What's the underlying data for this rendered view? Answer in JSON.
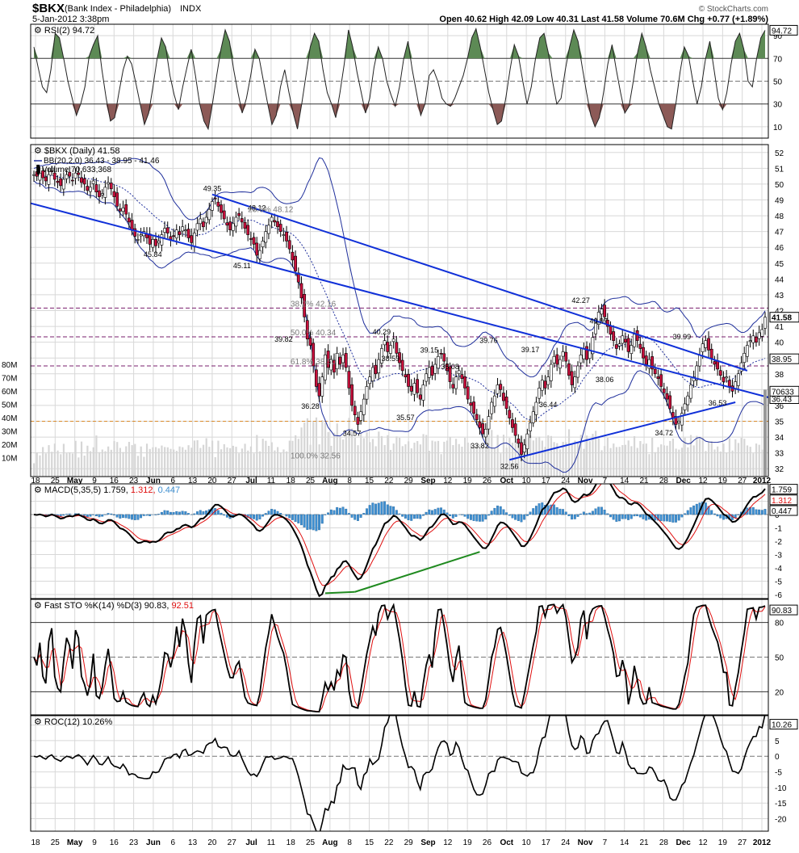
{
  "header": {
    "symbol": "$BKX",
    "name": "(Bank Index - Philadelphia)",
    "exchange": "INDX",
    "date": "5-Jan-2012 3:38pm",
    "quote": "Open 40.62  High 42.09  Low 40.31  Last 41.58  Volume 70.6M  Chg +0.77 (+1.89%)",
    "watermark": "© StockCharts.com"
  },
  "colors": {
    "up": "#ffffff",
    "down": "#c8103c",
    "bb": "#1f2f9c",
    "trend": "#1030d8",
    "fib": "#7a1f6e",
    "fib_last": "#d88a2a",
    "rsi_high": "#5d8a55",
    "rsi_low": "#8c5a57",
    "macd_signal": "#e01010",
    "macd_hist": "#3d8ed0",
    "divergence": "#1f8a1f",
    "grid": "#d8d8d8"
  },
  "chart_data": [
    {
      "type": "line",
      "panel": "rsi",
      "legend": "RSI(2) 94.72",
      "last_label": "94.72",
      "ylim": [
        0,
        100
      ],
      "yticks": [
        10,
        30,
        50,
        70,
        90
      ],
      "overbought": 70,
      "oversold": 30,
      "values": [
        80,
        62,
        45,
        40,
        60,
        92,
        88,
        70,
        50,
        35,
        20,
        30,
        45,
        72,
        82,
        90,
        60,
        35,
        15,
        18,
        40,
        60,
        72,
        65,
        48,
        30,
        12,
        22,
        45,
        70,
        88,
        80,
        55,
        38,
        25,
        45,
        62,
        78,
        55,
        30,
        15,
        8,
        30,
        55,
        78,
        95,
        85,
        60,
        40,
        22,
        35,
        55,
        78,
        70,
        50,
        30,
        12,
        20,
        45,
        60,
        40,
        22,
        8,
        30,
        55,
        80,
        92,
        85,
        60,
        40,
        30,
        18,
        40,
        65,
        95,
        80,
        58,
        40,
        22,
        35,
        62,
        80,
        70,
        50,
        38,
        28,
        45,
        70,
        85,
        60,
        40,
        20,
        30,
        55,
        60,
        50,
        35,
        30,
        28,
        35,
        45,
        55,
        70,
        88,
        96,
        80,
        60,
        40,
        25,
        12,
        15,
        35,
        60,
        82,
        72,
        50,
        30,
        45,
        70,
        88,
        92,
        75,
        50,
        30,
        35,
        60,
        80,
        95,
        85,
        62,
        40,
        20,
        10,
        18,
        40,
        65,
        82,
        60,
        40,
        22,
        28,
        50,
        75,
        92,
        80,
        60,
        45,
        30,
        20,
        10,
        8,
        30,
        58,
        80,
        72,
        50,
        30,
        45,
        70,
        85,
        60,
        35,
        25,
        40,
        65,
        85,
        92,
        78,
        50,
        45,
        70,
        88,
        94.72
      ]
    },
    {
      "type": "candlestick",
      "panel": "price",
      "legend": [
        "$BKX (Daily) 41.58",
        "BB(20,2.0) 36.43 - 38.95 - 41.46",
        "Volume 70,633,368"
      ],
      "x": [
        "18",
        "25",
        "May",
        "9",
        "16",
        "23",
        "Jun",
        "6",
        "13",
        "20",
        "27",
        "Jul",
        "11",
        "18",
        "25",
        "Aug",
        "8",
        "15",
        "22",
        "29",
        "Sep",
        "12",
        "19",
        "26",
        "Oct",
        "10",
        "17",
        "24",
        "Nov",
        "7",
        "14",
        "21",
        "28",
        "Dec",
        "12",
        "19",
        "27",
        "2012"
      ],
      "ylim": [
        31.5,
        52.5
      ],
      "yticks": [
        32,
        33,
        34,
        35,
        36,
        37,
        38,
        39,
        40,
        41,
        42,
        43,
        44,
        45,
        46,
        47,
        48,
        49,
        50,
        51,
        52
      ],
      "last": 41.58,
      "right_labels": [
        "41.58",
        "38.95",
        "36.43",
        "70633"
      ],
      "volume_ticks": [
        "80M",
        "70M",
        "60M",
        "50M",
        "40M",
        "30M",
        "20M",
        "10M"
      ],
      "closes": [
        50.6,
        50.5,
        50.7,
        50.4,
        50.2,
        50.6,
        50.8,
        50.3,
        50.1,
        49.9,
        50.3,
        50.6,
        50.5,
        50.2,
        50.7,
        50.6,
        50.1,
        50.0,
        49.6,
        49.8,
        50.2,
        49.5,
        49.2,
        49.4,
        49.8,
        50.1,
        49.7,
        49.2,
        48.6,
        48.3,
        48.5,
        48.1,
        47.6,
        47.1,
        46.7,
        46.5,
        46.8,
        47.0,
        46.6,
        46.2,
        46.5,
        46.1,
        46.4,
        46.8,
        47.2,
        46.9,
        46.5,
        46.7,
        47.1,
        46.8,
        47.3,
        47.1,
        46.6,
        46.3,
        46.9,
        47.5,
        47.8,
        47.3,
        47.9,
        48.4,
        48.9,
        49.1,
        48.6,
        48.2,
        47.8,
        47.4,
        47.1,
        47.5,
        47.9,
        48.0,
        47.6,
        47.2,
        46.8,
        46.5,
        46.2,
        45.5,
        45.8,
        46.4,
        47.0,
        47.4,
        47.9,
        47.6,
        47.3,
        47.0,
        46.8,
        46.4,
        45.9,
        45.2,
        44.5,
        43.8,
        42.8,
        41.6,
        40.2,
        39.8,
        38.5,
        37.2,
        36.6,
        37.8,
        39.2,
        38.4,
        38.9,
        38.1,
        39.3,
        38.6,
        39.2,
        38.4,
        37.1,
        36.0,
        35.4,
        34.8,
        35.6,
        36.4,
        37.2,
        37.8,
        38.4,
        38.0,
        38.9,
        39.6,
        40.1,
        39.4,
        39.8,
        40.2,
        39.3,
        38.7,
        38.2,
        37.8,
        37.2,
        36.9,
        37.4,
        36.8,
        36.4,
        37.3,
        38.0,
        38.4,
        37.9,
        38.6,
        39.1,
        39.3,
        38.8,
        38.2,
        37.5,
        37.1,
        37.8,
        38.2,
        37.7,
        37.1,
        36.4,
        36.0,
        35.5,
        35.1,
        34.6,
        34.2,
        34.5,
        35.3,
        36.2,
        36.6,
        37.3,
        37.0,
        36.3,
        35.8,
        35.2,
        34.6,
        34.1,
        33.6,
        32.9,
        33.5,
        34.2,
        34.9,
        35.6,
        36.2,
        37.1,
        37.6,
        37.1,
        37.8,
        38.6,
        39.1,
        38.6,
        38.9,
        39.4,
        38.8,
        37.9,
        37.3,
        37.8,
        38.5,
        39.2,
        39.6,
        38.9,
        39.5,
        40.3,
        41.2,
        41.9,
        42.1,
        41.6,
        41.0,
        40.5,
        40.1,
        39.6,
        39.9,
        40.4,
        40.0,
        39.4,
        39.8,
        40.5,
        40.1,
        39.6,
        39.0,
        38.6,
        38.9,
        38.3,
        38.0,
        37.7,
        37.2,
        36.8,
        36.4,
        35.8,
        35.2,
        34.8,
        35.0,
        35.5,
        36.1,
        36.6,
        37.3,
        37.8,
        38.5,
        39.2,
        39.9,
        40.1,
        39.5,
        39.0,
        38.6,
        38.3,
        37.9,
        37.5,
        37.8,
        37.2,
        36.9,
        37.5,
        38.0,
        38.7,
        39.3,
        39.8,
        40.1,
        40.4,
        40.0,
        40.6,
        40.8,
        41.58
      ],
      "swing_labels": [
        {
          "text": "49.35",
          "i": 60,
          "y": 49.35,
          "pos": "above"
        },
        {
          "text": "48.12",
          "i": 75,
          "y": 48.12,
          "pos": "above"
        },
        {
          "text": "45.84",
          "i": 40,
          "y": 46.0,
          "pos": "below"
        },
        {
          "text": "45.11",
          "i": 70,
          "y": 45.3,
          "pos": "below"
        },
        {
          "text": "39.82",
          "i": 84,
          "y": 39.82,
          "pos": "above"
        },
        {
          "text": "36.28",
          "i": 93,
          "y": 36.4,
          "pos": "below"
        },
        {
          "text": "34.57",
          "i": 107,
          "y": 34.7,
          "pos": "below"
        },
        {
          "text": "40.29",
          "i": 117,
          "y": 40.29,
          "pos": "above"
        },
        {
          "text": "38.59",
          "i": 120,
          "y": 38.59,
          "pos": "above"
        },
        {
          "text": "35.57",
          "i": 125,
          "y": 35.7,
          "pos": "below"
        },
        {
          "text": "39.15",
          "i": 133,
          "y": 39.15,
          "pos": "above"
        },
        {
          "text": "38.08",
          "i": 140,
          "y": 38.08,
          "pos": "above"
        },
        {
          "text": "33.82",
          "i": 150,
          "y": 33.9,
          "pos": "below"
        },
        {
          "text": "32.56",
          "i": 160,
          "y": 32.6,
          "pos": "below"
        },
        {
          "text": "39.76",
          "i": 153,
          "y": 39.76,
          "pos": "above"
        },
        {
          "text": "39.17",
          "i": 167,
          "y": 39.17,
          "pos": "above"
        },
        {
          "text": "36.44",
          "i": 173,
          "y": 36.5,
          "pos": "below"
        },
        {
          "text": "42.27",
          "i": 184,
          "y": 42.27,
          "pos": "above"
        },
        {
          "text": "40.97",
          "i": 190,
          "y": 40.97,
          "pos": "above"
        },
        {
          "text": "38.06",
          "i": 192,
          "y": 38.1,
          "pos": "below"
        },
        {
          "text": "34.72",
          "i": 212,
          "y": 34.72,
          "pos": "below"
        },
        {
          "text": "39.99",
          "i": 218,
          "y": 39.99,
          "pos": "above"
        },
        {
          "text": "36.53",
          "i": 230,
          "y": 36.6,
          "pos": "below"
        }
      ],
      "fib_levels": [
        {
          "label": "38.2% 42.16",
          "value": 42.16
        },
        {
          "label": "50.0% 40.34",
          "value": 40.34
        },
        {
          "label": "61.8% 38.50",
          "value": 38.5
        },
        {
          "label": "100.0% 32.56",
          "value": 32.56
        },
        {
          "label": "23.6% 48.12",
          "value": 48.12
        }
      ]
    },
    {
      "type": "line",
      "panel": "macd",
      "legend": [
        "MACD(5,35,5) 1.759,",
        "1.312,",
        "0.447"
      ],
      "right_labels": [
        "1.759",
        "1.312",
        "0.447"
      ],
      "ylim": [
        -6.3,
        2.3
      ],
      "yticks": [
        1,
        0,
        -1,
        -2,
        -3,
        -4,
        -5,
        -6
      ]
    },
    {
      "type": "line",
      "panel": "sto",
      "legend": [
        "Fast STO %K(14) %D(3) 90.83,",
        "92.51"
      ],
      "last_label": "90.83",
      "ylim": [
        0,
        100
      ],
      "yticks": [
        80,
        50,
        20
      ]
    },
    {
      "type": "line",
      "panel": "roc",
      "legend": "ROC(12) 10.26%",
      "last_label": "10.26",
      "ylim": [
        -24,
        13
      ],
      "yticks": [
        10,
        5,
        0,
        -5,
        -10,
        -15,
        -20
      ]
    }
  ]
}
